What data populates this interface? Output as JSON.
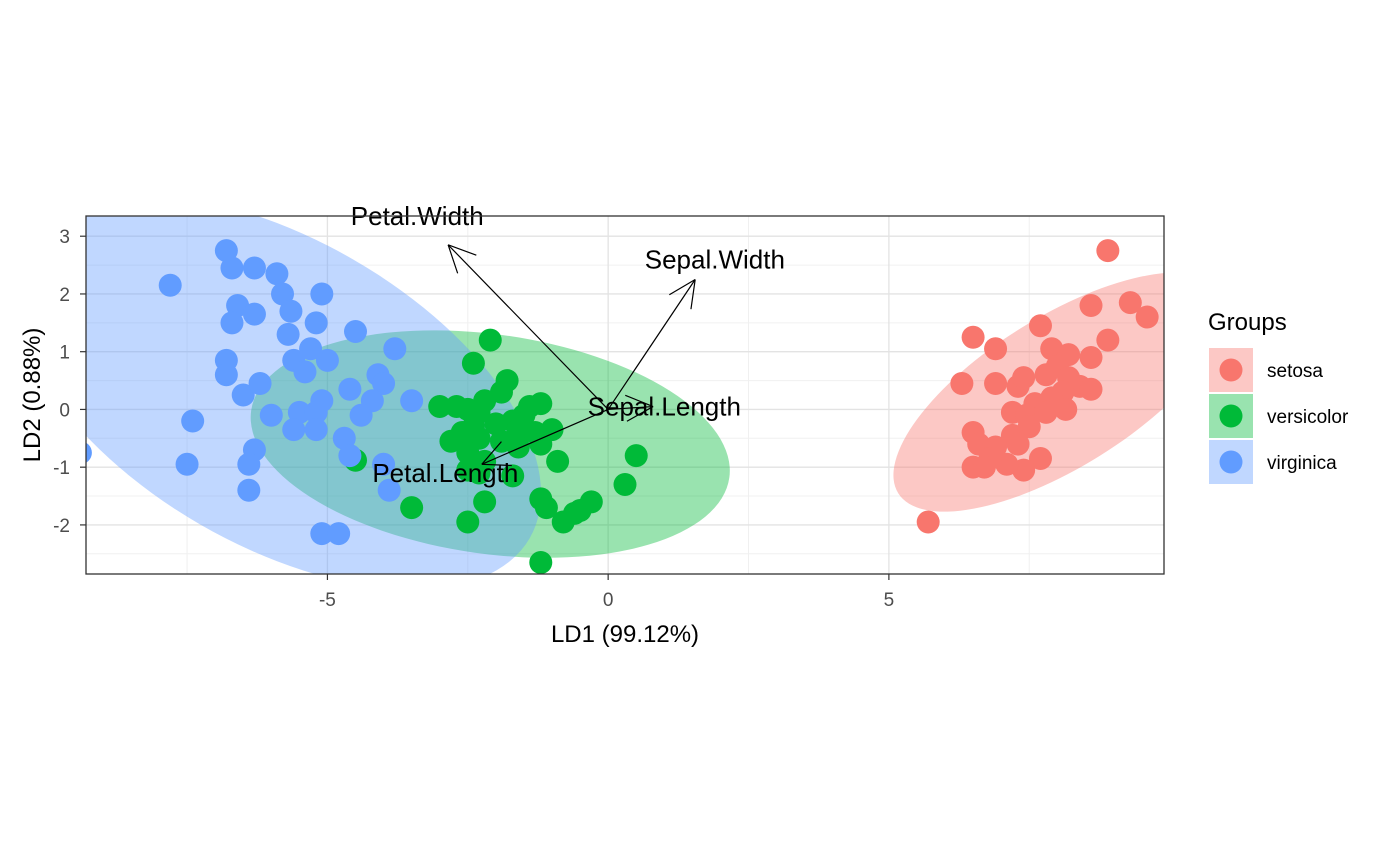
{
  "chart_data": {
    "type": "scatter",
    "xlabel": "LD1 (99.12%)",
    "ylabel": "LD2 (0.88%)",
    "xlim": [
      -9.3,
      9.9
    ],
    "ylim": [
      -2.85,
      3.35
    ],
    "x_ticks": [
      -5,
      0,
      5
    ],
    "y_ticks": [
      -2,
      -1,
      0,
      1,
      2,
      3
    ],
    "grid": true,
    "legend": {
      "title": "Groups",
      "position": "right"
    },
    "series": [
      {
        "name": "setosa",
        "color": "#F8766D",
        "ellipse": {
          "cx": 8.05,
          "cy": 0.3,
          "rx": 3.4,
          "ry": 1.3,
          "angle_deg": 32
        },
        "points": [
          [
            8.9,
            2.75
          ],
          [
            9.6,
            1.6
          ],
          [
            9.3,
            1.85
          ],
          [
            8.6,
            1.8
          ],
          [
            7.7,
            1.45
          ],
          [
            6.5,
            1.25
          ],
          [
            6.9,
            1.05
          ],
          [
            7.9,
            1.05
          ],
          [
            8.2,
            0.95
          ],
          [
            8.6,
            0.9
          ],
          [
            8.9,
            1.2
          ],
          [
            6.3,
            0.45
          ],
          [
            6.9,
            0.45
          ],
          [
            7.3,
            0.4
          ],
          [
            7.4,
            0.55
          ],
          [
            7.8,
            0.6
          ],
          [
            8.0,
            0.75
          ],
          [
            8.2,
            0.55
          ],
          [
            8.4,
            0.4
          ],
          [
            8.6,
            0.35
          ],
          [
            8.1,
            0.3
          ],
          [
            7.9,
            0.2
          ],
          [
            7.6,
            0.1
          ],
          [
            7.2,
            -0.05
          ],
          [
            7.45,
            -0.1
          ],
          [
            7.8,
            -0.05
          ],
          [
            8.15,
            0.0
          ],
          [
            7.5,
            -0.3
          ],
          [
            7.2,
            -0.45
          ],
          [
            6.5,
            -0.4
          ],
          [
            6.6,
            -0.6
          ],
          [
            6.9,
            -0.65
          ],
          [
            7.3,
            -0.6
          ],
          [
            7.7,
            -0.85
          ],
          [
            7.4,
            -1.05
          ],
          [
            7.1,
            -0.95
          ],
          [
            6.8,
            -0.85
          ],
          [
            6.5,
            -1.0
          ],
          [
            6.7,
            -1.0
          ],
          [
            5.7,
            -1.95
          ]
        ]
      },
      {
        "name": "versicolor",
        "color": "#00BA38",
        "ellipse": {
          "cx": -2.1,
          "cy": -0.6,
          "rx": 4.3,
          "ry": 1.9,
          "angle_deg": -8
        },
        "points": [
          [
            -2.1,
            1.2
          ],
          [
            -2.4,
            0.8
          ],
          [
            -1.8,
            0.5
          ],
          [
            -1.9,
            0.3
          ],
          [
            -2.2,
            0.15
          ],
          [
            -3.0,
            0.05
          ],
          [
            -2.7,
            0.05
          ],
          [
            -2.5,
            0.0
          ],
          [
            -2.3,
            -0.05
          ],
          [
            -1.4,
            0.05
          ],
          [
            -1.2,
            0.1
          ],
          [
            -1.5,
            -0.1
          ],
          [
            -1.7,
            -0.2
          ],
          [
            -2.0,
            -0.25
          ],
          [
            -2.4,
            -0.3
          ],
          [
            -1.6,
            -0.35
          ],
          [
            -1.3,
            -0.4
          ],
          [
            -1.0,
            -0.35
          ],
          [
            -2.6,
            -0.4
          ],
          [
            -2.8,
            -0.55
          ],
          [
            -2.3,
            -0.5
          ],
          [
            -1.9,
            -0.55
          ],
          [
            -1.6,
            -0.65
          ],
          [
            -1.2,
            -0.6
          ],
          [
            -2.5,
            -0.75
          ],
          [
            -2.2,
            -0.9
          ],
          [
            -0.9,
            -0.9
          ],
          [
            0.5,
            -0.8
          ],
          [
            -2.5,
            -1.05
          ],
          [
            -2.3,
            -1.1
          ],
          [
            -1.7,
            -1.15
          ],
          [
            -1.2,
            -1.55
          ],
          [
            -1.1,
            -1.7
          ],
          [
            -0.3,
            -1.6
          ],
          [
            -0.5,
            -1.75
          ],
          [
            -2.2,
            -1.6
          ],
          [
            -0.6,
            -1.8
          ],
          [
            -0.8,
            -1.95
          ],
          [
            -2.5,
            -1.95
          ],
          [
            -1.2,
            -2.65
          ],
          [
            0.3,
            -1.3
          ],
          [
            -3.5,
            -1.7
          ],
          [
            -4.5,
            -0.88
          ]
        ]
      },
      {
        "name": "virginica",
        "color": "#619CFF",
        "ellipse": {
          "cx": -5.9,
          "cy": 0.3,
          "rx": 5.2,
          "ry": 2.65,
          "angle_deg": -30
        },
        "points": [
          [
            -6.8,
            2.75
          ],
          [
            -6.7,
            2.45
          ],
          [
            -6.3,
            2.45
          ],
          [
            -5.9,
            2.35
          ],
          [
            -5.8,
            2.0
          ],
          [
            -5.1,
            2.0
          ],
          [
            -7.8,
            2.15
          ],
          [
            -6.6,
            1.8
          ],
          [
            -5.65,
            1.7
          ],
          [
            -6.3,
            1.65
          ],
          [
            -6.7,
            1.5
          ],
          [
            -5.2,
            1.5
          ],
          [
            -5.7,
            1.3
          ],
          [
            -4.5,
            1.35
          ],
          [
            -5.3,
            1.05
          ],
          [
            -3.8,
            1.05
          ],
          [
            -5.0,
            0.85
          ],
          [
            -5.6,
            0.85
          ],
          [
            -6.8,
            0.85
          ],
          [
            -6.8,
            0.6
          ],
          [
            -5.4,
            0.65
          ],
          [
            -4.1,
            0.6
          ],
          [
            -4.0,
            0.45
          ],
          [
            -6.5,
            0.25
          ],
          [
            -6.2,
            0.45
          ],
          [
            -4.6,
            0.35
          ],
          [
            -5.1,
            0.15
          ],
          [
            -4.2,
            0.15
          ],
          [
            -3.5,
            0.15
          ],
          [
            -6.0,
            -0.1
          ],
          [
            -5.5,
            -0.05
          ],
          [
            -5.2,
            -0.05
          ],
          [
            -4.4,
            -0.1
          ],
          [
            -5.6,
            -0.35
          ],
          [
            -5.2,
            -0.35
          ],
          [
            -7.4,
            -0.2
          ],
          [
            -4.7,
            -0.5
          ],
          [
            -6.3,
            -0.7
          ],
          [
            -4.6,
            -0.8
          ],
          [
            -4.0,
            -0.95
          ],
          [
            -7.5,
            -0.95
          ],
          [
            -6.4,
            -0.95
          ],
          [
            -6.4,
            -1.4
          ],
          [
            -3.9,
            -1.4
          ],
          [
            -5.1,
            -2.15
          ],
          [
            -4.8,
            -2.15
          ],
          [
            -9.4,
            -0.75
          ]
        ]
      }
    ],
    "arrows": [
      {
        "name": "Petal.Width",
        "end": [
          -2.85,
          2.85
        ],
        "label_pos": [
          -3.4,
          3.35
        ]
      },
      {
        "name": "Sepal.Width",
        "end": [
          1.55,
          2.25
        ],
        "label_pos": [
          1.9,
          2.6
        ]
      },
      {
        "name": "Sepal.Length",
        "end": [
          0.8,
          0.05
        ],
        "label_pos": [
          1.0,
          0.05
        ]
      },
      {
        "name": "Petal.Length",
        "end": [
          -2.25,
          -0.95
        ],
        "label_pos": [
          -2.9,
          -1.1
        ]
      }
    ]
  }
}
